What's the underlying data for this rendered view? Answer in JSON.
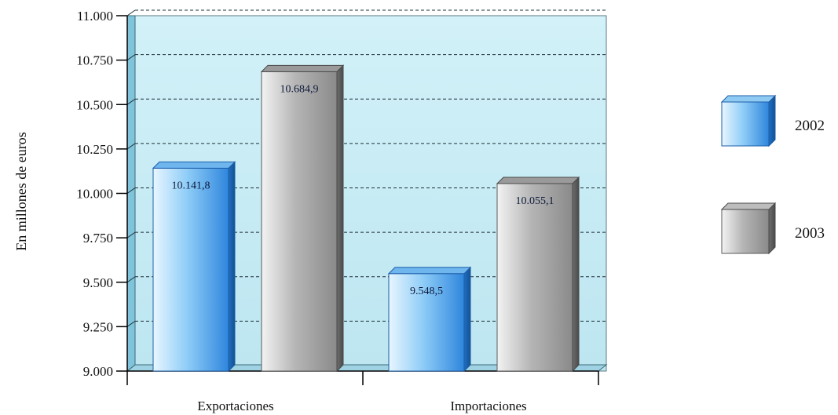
{
  "chart_data": {
    "type": "bar",
    "categories": [
      "Exportaciones",
      "Importaciones"
    ],
    "series": [
      {
        "name": "2002",
        "values": [
          10141.8,
          9548.5
        ],
        "labels": [
          "10.141,8",
          "9.548,5"
        ],
        "color": "#4aa3ec"
      },
      {
        "name": "2003",
        "values": [
          10684.9,
          10055.1
        ],
        "labels": [
          "10.684,9",
          "10.055,1"
        ],
        "color": "#a7a7a7"
      }
    ],
    "ylabel": "En millones de euros",
    "xlabel": "",
    "ylim": [
      9000,
      11000
    ],
    "yticks": [
      9000,
      9250,
      9500,
      9750,
      10000,
      10250,
      10500,
      10750,
      11000
    ],
    "ytick_labels": [
      "9.000",
      "9.250",
      "9.500",
      "9.750",
      "10.000",
      "10.250",
      "10.500",
      "10.750",
      "11.000"
    ],
    "grid": true,
    "legend_position": "right",
    "background_color": "#c6edf6"
  }
}
